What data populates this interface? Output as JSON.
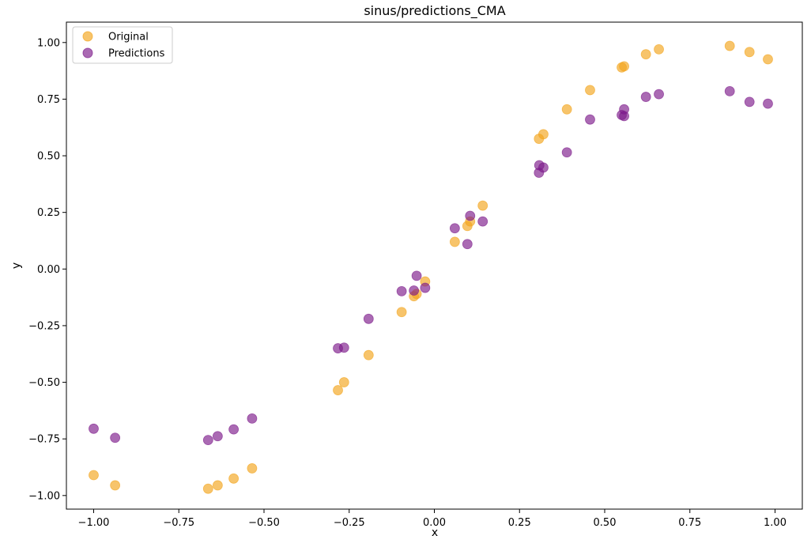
{
  "chart_data": {
    "type": "scatter",
    "title": "sinus/predictions_CMA",
    "xlabel": "x",
    "ylabel": "y",
    "xlim": [
      -1.08,
      1.08
    ],
    "ylim": [
      -1.06,
      1.09
    ],
    "xticks": [
      -1.0,
      -0.75,
      -0.5,
      -0.25,
      0.0,
      0.25,
      0.5,
      0.75,
      1.0
    ],
    "xtick_labels": [
      "−1.00",
      "−0.75",
      "−0.50",
      "−0.25",
      "0.00",
      "0.25",
      "0.50",
      "0.75",
      "1.00"
    ],
    "yticks": [
      -1.0,
      -0.75,
      -0.5,
      -0.25,
      0.0,
      0.25,
      0.5,
      0.75,
      1.0
    ],
    "ytick_labels": [
      "−1.00",
      "−0.75",
      "−0.50",
      "−0.25",
      "0.00",
      "0.25",
      "0.50",
      "0.75",
      "1.00"
    ],
    "grid": false,
    "legend_position": "upper-left",
    "series": [
      {
        "name": "Original",
        "color": "#f2a51c",
        "points": [
          [
            -1.0,
            -0.91
          ],
          [
            -0.937,
            -0.955
          ],
          [
            -0.664,
            -0.97
          ],
          [
            -0.636,
            -0.955
          ],
          [
            -0.589,
            -0.925
          ],
          [
            -0.535,
            -0.88
          ],
          [
            -0.283,
            -0.535
          ],
          [
            -0.265,
            -0.5
          ],
          [
            -0.193,
            -0.38
          ],
          [
            -0.096,
            -0.19
          ],
          [
            -0.06,
            -0.12
          ],
          [
            -0.052,
            -0.11
          ],
          [
            -0.027,
            -0.055
          ],
          [
            0.06,
            0.12
          ],
          [
            0.097,
            0.19
          ],
          [
            0.105,
            0.21
          ],
          [
            0.142,
            0.28
          ],
          [
            0.307,
            0.575
          ],
          [
            0.32,
            0.595
          ],
          [
            0.389,
            0.705
          ],
          [
            0.457,
            0.79
          ],
          [
            0.55,
            0.89
          ],
          [
            0.557,
            0.895
          ],
          [
            0.621,
            0.948
          ],
          [
            0.659,
            0.97
          ],
          [
            0.867,
            0.985
          ],
          [
            0.925,
            0.958
          ],
          [
            0.979,
            0.926
          ]
        ]
      },
      {
        "name": "Predictions",
        "color": "#7d1a8a",
        "points": [
          [
            -1.0,
            -0.705
          ],
          [
            -0.937,
            -0.745
          ],
          [
            -0.664,
            -0.755
          ],
          [
            -0.636,
            -0.738
          ],
          [
            -0.589,
            -0.708
          ],
          [
            -0.535,
            -0.66
          ],
          [
            -0.283,
            -0.35
          ],
          [
            -0.265,
            -0.347
          ],
          [
            -0.193,
            -0.22
          ],
          [
            -0.096,
            -0.098
          ],
          [
            -0.06,
            -0.095
          ],
          [
            -0.052,
            -0.03
          ],
          [
            -0.027,
            -0.083
          ],
          [
            0.06,
            0.18
          ],
          [
            0.097,
            0.11
          ],
          [
            0.105,
            0.235
          ],
          [
            0.142,
            0.21
          ],
          [
            0.307,
            0.425
          ],
          [
            0.308,
            0.458
          ],
          [
            0.32,
            0.448
          ],
          [
            0.389,
            0.515
          ],
          [
            0.457,
            0.66
          ],
          [
            0.55,
            0.68
          ],
          [
            0.557,
            0.705
          ],
          [
            0.557,
            0.675
          ],
          [
            0.621,
            0.76
          ],
          [
            0.659,
            0.772
          ],
          [
            0.867,
            0.785
          ],
          [
            0.925,
            0.738
          ],
          [
            0.979,
            0.73
          ]
        ]
      }
    ]
  }
}
